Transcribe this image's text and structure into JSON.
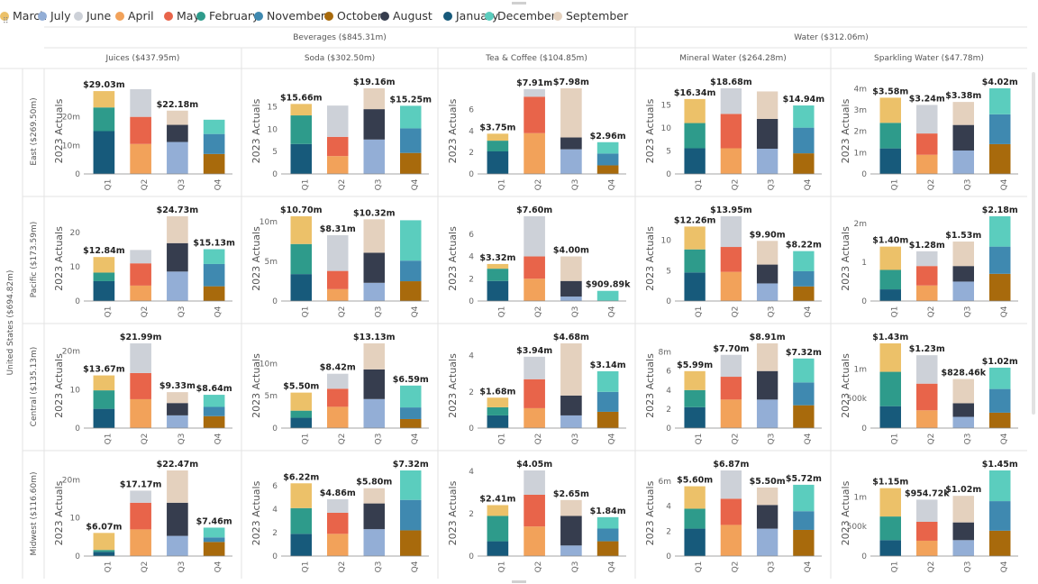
{
  "legend": [
    {
      "name": "March",
      "color": "#ECC169"
    },
    {
      "name": "July",
      "color": "#93AED6"
    },
    {
      "name": "June",
      "color": "#CDD1D8"
    },
    {
      "name": "April",
      "color": "#F2A25A"
    },
    {
      "name": "May",
      "color": "#E8644A"
    },
    {
      "name": "February",
      "color": "#2E9B8B"
    },
    {
      "name": "November",
      "color": "#3F89B0"
    },
    {
      "name": "October",
      "color": "#A86A0C"
    },
    {
      "name": "August",
      "color": "#363D4E"
    },
    {
      "name": "January",
      "color": "#175A7B"
    },
    {
      "name": "December",
      "color": "#5BCDBE"
    },
    {
      "name": "September",
      "color": "#E4D1BE"
    }
  ],
  "groups": [
    {
      "label": "Beverages ($845.31m)"
    },
    {
      "label": "Water ($312.06m)"
    }
  ],
  "columns": [
    {
      "label": "Juices ($437.95m)"
    },
    {
      "label": "Soda ($302.50m)"
    },
    {
      "label": "Tea & Coffee ($104.85m)"
    },
    {
      "label": "Mineral Water ($264.28m)"
    },
    {
      "label": "Sparkling Water ($47.78m)"
    }
  ],
  "country": {
    "label": "United States ($694.82m)"
  },
  "rows": [
    {
      "label": "East ($269.50m)"
    },
    {
      "label": "Pacific ($173.59m)"
    },
    {
      "label": "Central ($135.13m)"
    },
    {
      "label": "Midwest ($116.60m)"
    }
  ],
  "chart_data": {
    "type": "bar",
    "stacked": true,
    "ylabel": "2023 Actuals",
    "categories": [
      "Q1",
      "Q2",
      "Q3",
      "Q4"
    ],
    "quarter_months": [
      [
        "January",
        "February",
        "March"
      ],
      [
        "April",
        "May",
        "June"
      ],
      [
        "July",
        "August",
        "September"
      ],
      [
        "October",
        "November",
        "December"
      ]
    ],
    "panels": [
      [
        {
          "ymax": 30,
          "ticks": [
            0,
            10,
            20
          ],
          "tick_labels": [
            "0",
            "10m",
            "20m"
          ],
          "totals": [
            29.03,
            29.7,
            22.18,
            19.0
          ],
          "labels": [
            "$29.03m",
            "",
            "$22.18m",
            ""
          ],
          "segs": [
            [
              15,
              8.3,
              5.73
            ],
            [
              10.5,
              9.5,
              9.7
            ],
            [
              11.2,
              6,
              4.98
            ],
            [
              7,
              7,
              5
            ]
          ]
        },
        {
          "ymax": 19.16,
          "ticks": [
            0,
            5,
            10,
            15
          ],
          "tick_labels": [
            "0",
            "5",
            "10",
            "15"
          ],
          "totals": [
            15.66,
            15.3,
            19.16,
            15.25
          ],
          "labels": [
            "$15.66m",
            "",
            "$19.16m",
            "$15.25m"
          ],
          "segs": [
            [
              6.7,
              6.4,
              2.56
            ],
            [
              4,
              4.3,
              7
            ],
            [
              7.7,
              6.8,
              4.66
            ],
            [
              4.7,
              5.5,
              5.05
            ]
          ]
        },
        {
          "ymax": 7.98,
          "ticks": [
            0,
            2,
            4,
            6
          ],
          "tick_labels": [
            "0",
            "2",
            "4",
            "6"
          ],
          "totals": [
            3.75,
            7.91,
            7.98,
            2.96
          ],
          "labels": [
            "$3.75m",
            "$7.91m",
            "$7.98m",
            "$2.96m"
          ],
          "segs": [
            [
              2.1,
              1,
              0.65
            ],
            [
              3.8,
              3.4,
              0.71
            ],
            [
              2.3,
              1.1,
              4.58
            ],
            [
              0.8,
              1.1,
              1.06
            ]
          ]
        },
        {
          "ymax": 18.68,
          "ticks": [
            0,
            5,
            10,
            15
          ],
          "tick_labels": [
            "0",
            "5",
            "10",
            "15"
          ],
          "totals": [
            16.34,
            18.68,
            18.0,
            14.94
          ],
          "labels": [
            "$16.34m",
            "$18.68m",
            "",
            "$14.94m"
          ],
          "segs": [
            [
              5.6,
              5.5,
              5.24
            ],
            [
              5.6,
              7.5,
              5.58
            ],
            [
              5.5,
              6.5,
              6
            ],
            [
              4.5,
              5.6,
              4.84
            ]
          ]
        },
        {
          "ymax": 4.02,
          "ticks": [
            0,
            1,
            2,
            3,
            4
          ],
          "tick_labels": [
            "0",
            "1m",
            "2m",
            "3m",
            "4m"
          ],
          "totals": [
            3.58,
            3.24,
            3.38,
            4.02
          ],
          "labels": [
            "$3.58m",
            "$3.24m",
            "$3.38m",
            "$4.02m"
          ],
          "segs": [
            [
              1.2,
              1.2,
              1.18
            ],
            [
              0.9,
              1,
              1.34
            ],
            [
              1.1,
              1.2,
              1.08
            ],
            [
              1.4,
              1.4,
              1.22
            ]
          ]
        }
      ],
      [
        {
          "ymax": 24.73,
          "ticks": [
            0,
            10,
            20
          ],
          "tick_labels": [
            "0",
            "10",
            "20"
          ],
          "totals": [
            12.84,
            14.9,
            24.73,
            15.13
          ],
          "labels": [
            "$12.84m",
            "",
            "$24.73m",
            "$15.13m"
          ],
          "segs": [
            [
              5.8,
              2.5,
              4.54
            ],
            [
              4.5,
              6.5,
              3.9
            ],
            [
              8.6,
              8.3,
              7.83
            ],
            [
              4.3,
              6.5,
              4.33
            ]
          ]
        },
        {
          "ymax": 10.7,
          "ticks": [
            0,
            5,
            10
          ],
          "tick_labels": [
            "0",
            "5m",
            "10m"
          ],
          "totals": [
            10.7,
            8.31,
            10.32,
            10.2
          ],
          "labels": [
            "$10.70m",
            "$8.31m",
            "$10.32m",
            ""
          ],
          "segs": [
            [
              3.4,
              3.8,
              3.5
            ],
            [
              1.5,
              2.3,
              4.51
            ],
            [
              2.3,
              3.8,
              4.22
            ],
            [
              2.5,
              2.6,
              5.1
            ]
          ]
        },
        {
          "ymax": 7.6,
          "ticks": [
            0,
            2,
            4,
            6
          ],
          "tick_labels": [
            "0",
            "2",
            "4",
            "6"
          ],
          "totals": [
            3.32,
            7.6,
            4.0,
            0.91
          ],
          "labels": [
            "$3.32m",
            "$7.60m",
            "$4.00m",
            "$909.89k"
          ],
          "segs": [
            [
              1.8,
              1.1,
              0.42
            ],
            [
              2.0,
              2.0,
              3.6
            ],
            [
              0.4,
              1.4,
              2.2
            ],
            [
              0,
              0,
              0.91
            ]
          ]
        },
        {
          "ymax": 13.95,
          "ticks": [
            0,
            5,
            10
          ],
          "tick_labels": [
            "0",
            "5",
            "10"
          ],
          "totals": [
            12.26,
            13.95,
            9.9,
            8.22
          ],
          "labels": [
            "$12.26m",
            "$13.95m",
            "$9.90m",
            "$8.22m"
          ],
          "segs": [
            [
              4.7,
              3.8,
              3.76
            ],
            [
              4.8,
              4.1,
              5.05
            ],
            [
              2.9,
              3.1,
              3.9
            ],
            [
              2.4,
              2.5,
              3.32
            ]
          ]
        },
        {
          "ymax": 2.18,
          "ticks": [
            0,
            1,
            2
          ],
          "tick_labels": [
            "0",
            "1",
            "2m"
          ],
          "totals": [
            1.4,
            1.28,
            1.53,
            2.18
          ],
          "labels": [
            "$1.40m",
            "$1.28m",
            "$1.53m",
            "$2.18m"
          ],
          "segs": [
            [
              0.3,
              0.5,
              0.6
            ],
            [
              0.4,
              0.5,
              0.38
            ],
            [
              0.5,
              0.4,
              0.63
            ],
            [
              0.7,
              0.7,
              0.78
            ]
          ]
        }
      ],
      [
        {
          "ymax": 21.99,
          "ticks": [
            0,
            10,
            20
          ],
          "tick_labels": [
            "0",
            "10",
            "20m"
          ],
          "totals": [
            13.67,
            21.99,
            9.33,
            8.64
          ],
          "labels": [
            "$13.67m",
            "$21.99m",
            "$9.33m",
            "$8.64m"
          ],
          "segs": [
            [
              5,
              4.8,
              3.87
            ],
            [
              7.5,
              6.8,
              7.69
            ],
            [
              3.3,
              3.2,
              2.83
            ],
            [
              3.1,
              2.4,
              3.14
            ]
          ]
        },
        {
          "ymax": 13.13,
          "ticks": [
            0,
            5,
            10
          ],
          "tick_labels": [
            "0",
            "5m",
            "10m"
          ],
          "totals": [
            5.5,
            8.42,
            13.13,
            6.59
          ],
          "labels": [
            "$5.50m",
            "$8.42m",
            "$13.13m",
            "$6.59m"
          ],
          "segs": [
            [
              1.6,
              1.1,
              2.8
            ],
            [
              3.3,
              2.8,
              2.32
            ],
            [
              4.5,
              4.6,
              4.03
            ],
            [
              1.4,
              1.8,
              3.39
            ]
          ]
        },
        {
          "ymax": 4.68,
          "ticks": [
            0,
            2,
            4
          ],
          "tick_labels": [
            "0",
            "2",
            "4"
          ],
          "totals": [
            1.68,
            3.94,
            4.68,
            3.14
          ],
          "labels": [
            "$1.68m",
            "$3.94m",
            "$4.68m",
            "$3.14m"
          ],
          "segs": [
            [
              0.7,
              0.45,
              0.53
            ],
            [
              1.1,
              1.6,
              1.24
            ],
            [
              0.7,
              1.1,
              2.88
            ],
            [
              0.9,
              1.1,
              1.14
            ]
          ]
        },
        {
          "ymax": 8.91,
          "ticks": [
            0,
            2,
            4,
            6,
            8
          ],
          "tick_labels": [
            "0",
            "2",
            "4",
            "6",
            "8m"
          ],
          "totals": [
            5.99,
            7.7,
            8.91,
            7.32
          ],
          "labels": [
            "$5.99m",
            "$7.70m",
            "$8.91m",
            "$7.32m"
          ],
          "segs": [
            [
              2.2,
              1.8,
              1.99
            ],
            [
              3,
              2.4,
              2.3
            ],
            [
              3,
              3,
              2.91
            ],
            [
              2.4,
              2.4,
              2.52
            ]
          ]
        },
        {
          "ymax": 1.43,
          "ticks": [
            0,
            0.5,
            1
          ],
          "tick_labels": [
            "0",
            "500k",
            "1m"
          ],
          "totals": [
            1.43,
            1.23,
            0.828,
            1.02
          ],
          "labels": [
            "$1.43m",
            "$1.23m",
            "$828.46k",
            "$1.02m"
          ],
          "segs": [
            [
              0.37,
              0.58,
              0.48
            ],
            [
              0.3,
              0.45,
              0.48
            ],
            [
              0.19,
              0.23,
              0.408
            ],
            [
              0.26,
              0.4,
              0.36
            ]
          ]
        }
      ],
      [
        {
          "ymax": 22.47,
          "ticks": [
            0,
            10,
            20
          ],
          "tick_labels": [
            "0",
            "10",
            "20m"
          ],
          "totals": [
            6.07,
            17.17,
            22.47,
            7.46
          ],
          "labels": [
            "$6.07m",
            "$17.17m",
            "$22.47m",
            "$7.46m"
          ],
          "segs": [
            [
              1.1,
              0.5,
              4.47
            ],
            [
              7,
              7,
              3.17
            ],
            [
              5.3,
              8.7,
              8.47
            ],
            [
              3.7,
              1.2,
              2.56
            ]
          ]
        },
        {
          "ymax": 7.32,
          "ticks": [
            0,
            2,
            4,
            6
          ],
          "tick_labels": [
            "0",
            "2",
            "4",
            "6"
          ],
          "totals": [
            6.22,
            4.86,
            5.8,
            7.32
          ],
          "labels": [
            "$6.22m",
            "$4.86m",
            "$5.80m",
            "$7.32m"
          ],
          "segs": [
            [
              1.9,
              2.2,
              2.12
            ],
            [
              1.9,
              1.8,
              1.16
            ],
            [
              2.3,
              2.2,
              1.3
            ],
            [
              2.2,
              2.6,
              2.52
            ]
          ]
        },
        {
          "ymax": 4.05,
          "ticks": [
            0,
            2,
            4
          ],
          "tick_labels": [
            "0",
            "2",
            "4"
          ],
          "totals": [
            2.41,
            4.05,
            2.65,
            1.84
          ],
          "labels": [
            "$2.41m",
            "$4.05m",
            "$2.65m",
            "$1.84m"
          ],
          "segs": [
            [
              0.7,
              1.2,
              0.51
            ],
            [
              1.4,
              1.5,
              1.15
            ],
            [
              0.5,
              1.4,
              0.75
            ],
            [
              0.7,
              0.6,
              0.54
            ]
          ]
        },
        {
          "ymax": 6.87,
          "ticks": [
            0,
            2,
            4,
            6
          ],
          "tick_labels": [
            "0",
            "2",
            "4",
            "6m"
          ],
          "totals": [
            5.6,
            6.87,
            5.5,
            5.72
          ],
          "labels": [
            "$5.60m",
            "$6.87m",
            "$5.50m",
            "$5.72m"
          ],
          "segs": [
            [
              2.2,
              1.6,
              1.8
            ],
            [
              2.5,
              2.1,
              2.27
            ],
            [
              2.2,
              1.9,
              1.4
            ],
            [
              2.1,
              1.5,
              2.12
            ]
          ]
        },
        {
          "ymax": 1.45,
          "ticks": [
            0,
            0.5,
            1
          ],
          "tick_labels": [
            "0",
            "500k",
            "1m"
          ],
          "totals": [
            1.15,
            0.955,
            1.02,
            1.45
          ],
          "labels": [
            "$1.15m",
            "$954.72k",
            "$1.02m",
            "$1.45m"
          ],
          "segs": [
            [
              0.27,
              0.4,
              0.48
            ],
            [
              0.26,
              0.32,
              0.375
            ],
            [
              0.27,
              0.3,
              0.45
            ],
            [
              0.43,
              0.5,
              0.52
            ]
          ]
        }
      ]
    ]
  }
}
